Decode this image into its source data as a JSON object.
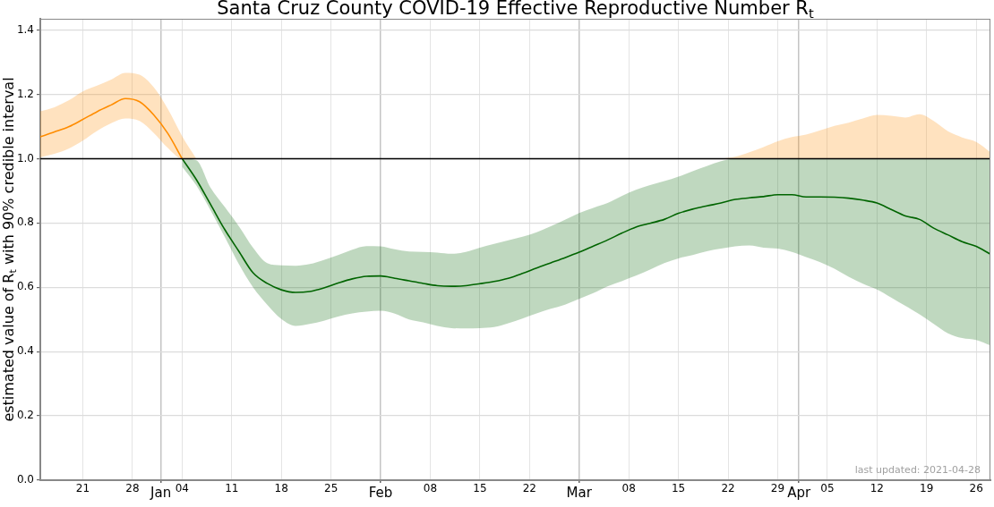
{
  "chart_data": {
    "type": "line",
    "title": "Santa Cruz County COVID-19 Effective Reproductive Number R$_{t}$",
    "ylabel": "estimated value of R$_{t}$ with 90% credible interval",
    "x": [
      "2020-12-15",
      "2020-12-17",
      "2020-12-19",
      "2020-12-21",
      "2020-12-23",
      "2020-12-25",
      "2020-12-27",
      "2020-12-29",
      "2020-12-31",
      "2021-01-02",
      "2021-01-04",
      "2021-01-06",
      "2021-01-08",
      "2021-01-10",
      "2021-01-12",
      "2021-01-14",
      "2021-01-16",
      "2021-01-18",
      "2021-01-20",
      "2021-01-22",
      "2021-01-24",
      "2021-01-26",
      "2021-01-28",
      "2021-01-30",
      "2021-02-01",
      "2021-02-03",
      "2021-02-05",
      "2021-02-07",
      "2021-02-09",
      "2021-02-11",
      "2021-02-13",
      "2021-02-15",
      "2021-02-17",
      "2021-02-19",
      "2021-02-21",
      "2021-02-23",
      "2021-02-25",
      "2021-02-27",
      "2021-03-01",
      "2021-03-03",
      "2021-03-05",
      "2021-03-07",
      "2021-03-09",
      "2021-03-11",
      "2021-03-13",
      "2021-03-15",
      "2021-03-17",
      "2021-03-19",
      "2021-03-21",
      "2021-03-23",
      "2021-03-25",
      "2021-03-27",
      "2021-03-29",
      "2021-03-31",
      "2021-04-02",
      "2021-04-04",
      "2021-04-06",
      "2021-04-08",
      "2021-04-10",
      "2021-04-12",
      "2021-04-14",
      "2021-04-16",
      "2021-04-18",
      "2021-04-20",
      "2021-04-22",
      "2021-04-24",
      "2021-04-26",
      "2021-04-28"
    ],
    "series": [
      {
        "color": "#ff8c00",
        "values": [
          1.068,
          1.083,
          1.099,
          1.122,
          1.146,
          1.167,
          1.187,
          1.177,
          1.136,
          1.078,
          1.0,
          null,
          null,
          null,
          null,
          null,
          null,
          null,
          null,
          null,
          null,
          null,
          null,
          null,
          null,
          null,
          null,
          null,
          null,
          null,
          null,
          null,
          null,
          null,
          null,
          null,
          null,
          null,
          null,
          null,
          null,
          null,
          null,
          null,
          null,
          null,
          null,
          null,
          null,
          null,
          null,
          null,
          null,
          null,
          null,
          null,
          null,
          null,
          null,
          null,
          null,
          null,
          null,
          null,
          null,
          null,
          null,
          null
        ],
        "lower": [
          1.004,
          1.015,
          1.031,
          1.056,
          1.086,
          1.11,
          1.125,
          1.117,
          1.08,
          1.033,
          1.0,
          1.0,
          null,
          null,
          null,
          null,
          null,
          null,
          null,
          null,
          null,
          null,
          null,
          null,
          null,
          null,
          null,
          null,
          null,
          null,
          null,
          null,
          null,
          null,
          null,
          null,
          null,
          null,
          null,
          null,
          null,
          null,
          null,
          null,
          null,
          null,
          null,
          null,
          1.0,
          1.0,
          1.0,
          1.0,
          1.0,
          1.0,
          1.0,
          1.0,
          1.0,
          1.0,
          1.0,
          1.0,
          1.0,
          1.0,
          1.0,
          1.0,
          1.0,
          1.0,
          1.0,
          1.0
        ],
        "upper": [
          1.147,
          1.16,
          1.181,
          1.209,
          1.227,
          1.246,
          1.267,
          1.261,
          1.222,
          1.154,
          1.07,
          1.0,
          null,
          null,
          null,
          null,
          null,
          null,
          null,
          null,
          null,
          null,
          null,
          null,
          null,
          null,
          null,
          null,
          null,
          null,
          null,
          null,
          null,
          null,
          null,
          null,
          null,
          null,
          null,
          null,
          null,
          null,
          null,
          null,
          null,
          null,
          null,
          null,
          1.0,
          1.006,
          1.02,
          1.036,
          1.054,
          1.067,
          1.075,
          1.088,
          1.102,
          1.112,
          1.125,
          1.136,
          1.133,
          1.128,
          1.138,
          1.117,
          1.085,
          1.066,
          1.052,
          1.02
        ]
      },
      {
        "color": "#006400",
        "values": [
          null,
          null,
          null,
          null,
          null,
          null,
          null,
          null,
          null,
          null,
          1.0,
          0.935,
          0.858,
          0.78,
          0.712,
          0.645,
          0.612,
          0.592,
          0.584,
          0.587,
          0.598,
          0.613,
          0.626,
          0.634,
          0.635,
          0.628,
          0.62,
          0.612,
          0.605,
          0.603,
          0.605,
          0.611,
          0.618,
          0.628,
          0.643,
          0.66,
          0.676,
          0.692,
          0.709,
          0.728,
          0.747,
          0.768,
          0.787,
          0.799,
          0.811,
          0.83,
          0.843,
          0.853,
          0.862,
          0.873,
          0.878,
          0.882,
          0.888,
          0.888,
          0.881,
          0.881,
          0.88,
          0.877,
          0.871,
          0.862,
          0.842,
          0.822,
          0.811,
          0.784,
          0.763,
          0.742,
          0.727,
          0.703
        ],
        "lower": [
          null,
          null,
          null,
          null,
          null,
          null,
          null,
          null,
          null,
          null,
          0.975,
          0.917,
          0.84,
          0.757,
          0.672,
          0.6,
          0.546,
          0.501,
          0.48,
          0.486,
          0.496,
          0.509,
          0.519,
          0.524,
          0.527,
          0.518,
          0.5,
          0.491,
          0.48,
          0.473,
          0.472,
          0.473,
          0.476,
          0.488,
          0.503,
          0.519,
          0.533,
          0.546,
          0.564,
          0.582,
          0.603,
          0.619,
          0.636,
          0.655,
          0.675,
          0.69,
          0.7,
          0.712,
          0.72,
          0.727,
          0.73,
          0.723,
          0.72,
          0.71,
          0.694,
          0.678,
          0.658,
          0.633,
          0.611,
          0.593,
          0.568,
          0.542,
          0.516,
          0.486,
          0.457,
          0.442,
          0.436,
          0.419
        ],
        "upper": [
          null,
          null,
          null,
          null,
          null,
          null,
          null,
          null,
          null,
          null,
          1.0,
          0.995,
          0.91,
          0.85,
          0.79,
          0.723,
          0.675,
          0.668,
          0.667,
          0.672,
          0.685,
          0.7,
          0.717,
          0.728,
          0.727,
          0.718,
          0.711,
          0.71,
          0.708,
          0.704,
          0.71,
          0.723,
          0.735,
          0.746,
          0.757,
          0.771,
          0.79,
          0.81,
          0.831,
          0.847,
          0.862,
          0.884,
          0.903,
          0.918,
          0.93,
          0.944,
          0.961,
          0.977,
          0.992,
          1.0,
          1.0,
          1.0,
          1.0,
          1.0,
          1.0,
          1.0,
          1.0,
          1.0,
          1.0,
          1.0,
          1.0,
          1.0,
          1.0,
          1.0,
          1.0,
          1.0,
          1.0,
          1.0
        ]
      }
    ],
    "xlim": [
      "2020-12-15",
      "2021-04-28"
    ],
    "xticks": [
      {
        "value": "2020-12-21",
        "label": "21"
      },
      {
        "value": "2020-12-28",
        "label": "28"
      },
      {
        "value": "2021-01-01",
        "label": "Jan"
      },
      {
        "value": "2021-01-04",
        "label": "04"
      },
      {
        "value": "2021-01-11",
        "label": "11"
      },
      {
        "value": "2021-01-18",
        "label": "18"
      },
      {
        "value": "2021-01-25",
        "label": "25"
      },
      {
        "value": "2021-02-01",
        "label": "Feb"
      },
      {
        "value": "2021-02-08",
        "label": "08"
      },
      {
        "value": "2021-02-15",
        "label": "15"
      },
      {
        "value": "2021-02-22",
        "label": "22"
      },
      {
        "value": "2021-03-01",
        "label": "Mar"
      },
      {
        "value": "2021-03-08",
        "label": "08"
      },
      {
        "value": "2021-03-15",
        "label": "15"
      },
      {
        "value": "2021-03-22",
        "label": "22"
      },
      {
        "value": "2021-03-29",
        "label": "29"
      },
      {
        "value": "2021-04-01",
        "label": "Apr"
      },
      {
        "value": "2021-04-05",
        "label": "05"
      },
      {
        "value": "2021-04-12",
        "label": "12"
      },
      {
        "value": "2021-04-19",
        "label": "19"
      },
      {
        "value": "2021-04-26",
        "label": "26"
      }
    ],
    "ylim": [
      0,
      1.435
    ],
    "yticks": [
      {
        "value": 0,
        "label": "0.0"
      },
      0.2,
      0.4,
      0.6,
      0.8,
      {
        "value": 1,
        "label": "1.0"
      },
      1.2,
      1.4
    ],
    "ref_lines": [
      {
        "axis": "y",
        "value": 1,
        "color": "#000000"
      }
    ],
    "annotations": [
      "last updated: 2021-04-28"
    ],
    "grid": true
  }
}
